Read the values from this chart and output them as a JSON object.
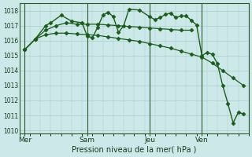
{
  "bg_color": "#cce8e8",
  "grid_color": "#aacccc",
  "line_color": "#1a5c1a",
  "marker_color": "#1a5c1a",
  "xlabel": "Pression niveau de la mer( hPa )",
  "ylim": [
    1009.8,
    1018.5
  ],
  "yticks": [
    1010,
    1011,
    1012,
    1013,
    1014,
    1015,
    1016,
    1017,
    1018
  ],
  "xtick_labels": [
    "Mer",
    "Sam",
    "Jeu",
    "Ven"
  ],
  "xtick_pos": [
    0,
    12,
    24,
    34
  ],
  "vline_pos": [
    0,
    12,
    24,
    34
  ],
  "xlim": [
    -1,
    43
  ],
  "series1_x": [
    0,
    2,
    4,
    6,
    8,
    10,
    12,
    14,
    16,
    18,
    20,
    22,
    24,
    26,
    28,
    30,
    32,
    34,
    36,
    38,
    40,
    42
  ],
  "series1_y": [
    1015.4,
    1016.1,
    1016.4,
    1016.5,
    1016.5,
    1016.45,
    1016.4,
    1016.35,
    1016.25,
    1016.15,
    1016.05,
    1015.95,
    1015.8,
    1015.65,
    1015.5,
    1015.3,
    1015.1,
    1014.9,
    1014.5,
    1014.0,
    1013.5,
    1013.0
  ],
  "series2_x": [
    0,
    2,
    4,
    6,
    8,
    10,
    12,
    14,
    16,
    18,
    20,
    22,
    24,
    26,
    28,
    30,
    32
  ],
  "series2_y": [
    1015.4,
    1016.1,
    1016.7,
    1017.0,
    1017.2,
    1017.1,
    1017.1,
    1017.1,
    1017.05,
    1017.0,
    1016.95,
    1016.9,
    1016.85,
    1016.8,
    1016.75,
    1016.7,
    1016.7
  ],
  "series3_x": [
    0,
    2,
    4,
    5,
    7,
    9,
    11,
    12,
    13,
    14,
    15,
    16,
    17,
    18,
    19,
    20,
    22,
    24,
    25,
    26,
    27,
    28,
    29,
    30,
    31,
    32,
    33,
    34,
    35,
    36,
    37,
    38,
    39,
    40,
    41,
    42
  ],
  "series3_y": [
    1015.4,
    1016.1,
    1017.0,
    1017.2,
    1017.7,
    1017.3,
    1017.2,
    1016.3,
    1016.2,
    1016.9,
    1017.7,
    1017.9,
    1017.6,
    1016.55,
    1017.0,
    1018.1,
    1018.05,
    1017.6,
    1017.4,
    1017.55,
    1017.75,
    1017.85,
    1017.55,
    1017.65,
    1017.65,
    1017.35,
    1017.05,
    1015.0,
    1015.2,
    1015.1,
    1014.45,
    1013.0,
    1011.8,
    1010.5,
    1011.2,
    1011.1
  ]
}
